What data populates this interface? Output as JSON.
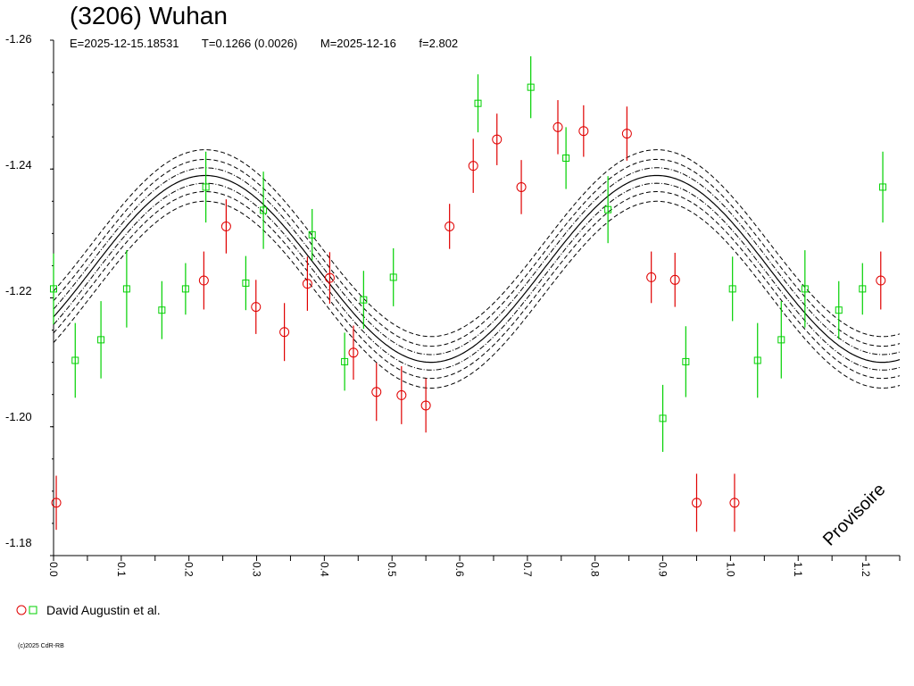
{
  "chart_data": {
    "type": "scatter",
    "title": "(3206) Wuhan",
    "subtitle": {
      "epoch": "E=2025-12-15.18531",
      "period": "T=0.1266 (0.0026)",
      "date": "M=2025-12-16",
      "harmonics": "f=2.802"
    },
    "xlim": [
      0.0,
      1.25
    ],
    "ylim": [
      -1.26,
      -1.18
    ],
    "y_inverted": true,
    "x_ticks": [
      "0.0",
      "0.1",
      "0.2",
      "0.3",
      "0.4",
      "0.5",
      "0.6",
      "0.7",
      "0.8",
      "0.9",
      "1.0",
      "1.1",
      "1.2"
    ],
    "y_ticks": [
      "-1.26",
      "-1.24",
      "-1.22",
      "-1.20",
      "-1.18"
    ],
    "watermark": "Provisoire",
    "fit_curve": {
      "center": -1.2245,
      "amplitude": 0.0145,
      "period": 0.667,
      "phase_max_at": 0.224,
      "bands": [
        0.0012,
        0.0025,
        0.004
      ]
    },
    "series": [
      {
        "name": "David Augustin et al.",
        "marker": "circle",
        "color": "#e00000",
        "points": [
          {
            "x": 0.004,
            "y": -1.1882,
            "err": 0.0042
          },
          {
            "x": 0.222,
            "y": -1.2227,
            "err": 0.0045
          },
          {
            "x": 0.255,
            "y": -1.2311,
            "err": 0.0042
          },
          {
            "x": 0.299,
            "y": -1.2186,
            "err": 0.0042
          },
          {
            "x": 0.341,
            "y": -1.2147,
            "err": 0.0045
          },
          {
            "x": 0.375,
            "y": -1.2222,
            "err": 0.0042
          },
          {
            "x": 0.408,
            "y": -1.2231,
            "err": 0.004
          },
          {
            "x": 0.443,
            "y": -1.2115,
            "err": 0.0042
          },
          {
            "x": 0.477,
            "y": -1.2054,
            "err": 0.0045
          },
          {
            "x": 0.514,
            "y": -1.2049,
            "err": 0.0045
          },
          {
            "x": 0.55,
            "y": -1.2033,
            "err": 0.0042
          },
          {
            "x": 0.585,
            "y": -1.2311,
            "err": 0.0035
          },
          {
            "x": 0.62,
            "y": -1.2405,
            "err": 0.0042
          },
          {
            "x": 0.655,
            "y": -1.2446,
            "err": 0.004
          },
          {
            "x": 0.691,
            "y": -1.2372,
            "err": 0.0042
          },
          {
            "x": 0.745,
            "y": -1.2465,
            "err": 0.0042
          },
          {
            "x": 0.783,
            "y": -1.2459,
            "err": 0.004
          },
          {
            "x": 0.847,
            "y": -1.2455,
            "err": 0.0042
          },
          {
            "x": 0.883,
            "y": -1.2232,
            "err": 0.004
          },
          {
            "x": 0.918,
            "y": -1.2228,
            "err": 0.0042
          },
          {
            "x": 0.95,
            "y": -1.1882,
            "err": 0.0045
          },
          {
            "x": 1.006,
            "y": -1.1882,
            "err": 0.0045
          },
          {
            "x": 1.222,
            "y": -1.2227,
            "err": 0.0045
          }
        ]
      },
      {
        "name": "David Augustin et al.",
        "marker": "square",
        "color": "#00d000",
        "points": [
          {
            "x": 0.0,
            "y": -1.2214,
            "err": 0.0055
          },
          {
            "x": 0.032,
            "y": -1.2103,
            "err": 0.0058
          },
          {
            "x": 0.07,
            "y": -1.2135,
            "err": 0.006
          },
          {
            "x": 0.108,
            "y": -1.2214,
            "err": 0.006
          },
          {
            "x": 0.16,
            "y": -1.2181,
            "err": 0.0045
          },
          {
            "x": 0.195,
            "y": -1.2214,
            "err": 0.004
          },
          {
            "x": 0.225,
            "y": -1.2372,
            "err": 0.0055
          },
          {
            "x": 0.284,
            "y": -1.2223,
            "err": 0.0042
          },
          {
            "x": 0.31,
            "y": -1.2336,
            "err": 0.006
          },
          {
            "x": 0.382,
            "y": -1.2298,
            "err": 0.004
          },
          {
            "x": 0.43,
            "y": -1.2101,
            "err": 0.0045
          },
          {
            "x": 0.458,
            "y": -1.2197,
            "err": 0.0045
          },
          {
            "x": 0.502,
            "y": -1.2232,
            "err": 0.0045
          },
          {
            "x": 0.627,
            "y": -1.2502,
            "err": 0.0045
          },
          {
            "x": 0.705,
            "y": -1.2527,
            "err": 0.0048
          },
          {
            "x": 0.757,
            "y": -1.2417,
            "err": 0.0048
          },
          {
            "x": 0.819,
            "y": -1.2337,
            "err": 0.0052
          },
          {
            "x": 0.9,
            "y": -1.2013,
            "err": 0.0052
          },
          {
            "x": 0.934,
            "y": -1.2101,
            "err": 0.0055
          },
          {
            "x": 1.003,
            "y": -1.2214,
            "err": 0.005
          },
          {
            "x": 1.04,
            "y": -1.2103,
            "err": 0.0058
          },
          {
            "x": 1.075,
            "y": -1.2135,
            "err": 0.006
          },
          {
            "x": 1.11,
            "y": -1.2214,
            "err": 0.006
          },
          {
            "x": 1.16,
            "y": -1.2181,
            "err": 0.0045
          },
          {
            "x": 1.195,
            "y": -1.2214,
            "err": 0.004
          },
          {
            "x": 1.225,
            "y": -1.2372,
            "err": 0.0055
          }
        ]
      }
    ],
    "legend_label": "David Augustin et al."
  },
  "copyright": "(c)2025 CdR-RB"
}
